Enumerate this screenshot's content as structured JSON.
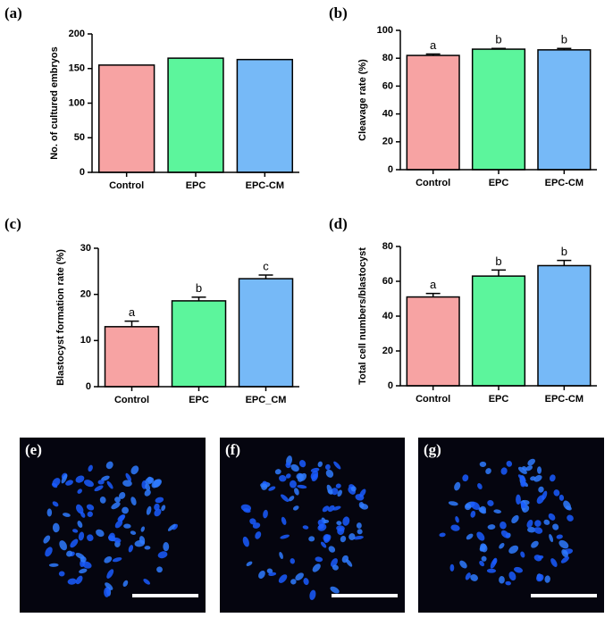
{
  "chart_data": [
    {
      "type": "bar",
      "panel_label": "(a)",
      "ylabel": "No. of cultured embryos",
      "categories": [
        "Control",
        "EPC",
        "EPC-CM"
      ],
      "values": [
        155,
        165,
        163
      ],
      "colors": [
        "#f7a3a3",
        "#5cf59c",
        "#76b9f7"
      ],
      "ylim": [
        0,
        200
      ],
      "yticks": [
        0,
        50,
        100,
        150,
        200
      ]
    },
    {
      "type": "bar",
      "panel_label": "(b)",
      "ylabel": "Cleavage rate (%)",
      "categories": [
        "Control",
        "EPC",
        "EPC-CM"
      ],
      "values": [
        82,
        86.5,
        86
      ],
      "errors": [
        1,
        0.5,
        1
      ],
      "annotations": [
        "a",
        "b",
        "b"
      ],
      "colors": [
        "#f7a3a3",
        "#5cf59c",
        "#76b9f7"
      ],
      "ylim": [
        0,
        100
      ],
      "yticks": [
        0,
        20,
        40,
        60,
        80,
        100
      ]
    },
    {
      "type": "bar",
      "panel_label": "(c)",
      "ylabel": "Blastocyst formation rate (%)",
      "categories": [
        "Control",
        "EPC",
        "EPC_CM"
      ],
      "values": [
        13,
        18.6,
        23.4
      ],
      "errors": [
        1.2,
        0.8,
        0.8
      ],
      "annotations": [
        "a",
        "b",
        "c"
      ],
      "colors": [
        "#f7a3a3",
        "#5cf59c",
        "#76b9f7"
      ],
      "ylim": [
        0,
        30
      ],
      "yticks": [
        0,
        10,
        20,
        30
      ]
    },
    {
      "type": "bar",
      "panel_label": "(d)",
      "ylabel": "Total cell numbers/blastocyst",
      "categories": [
        "Control",
        "EPC",
        "EPC-CM"
      ],
      "values": [
        51,
        63,
        69
      ],
      "errors": [
        2,
        3.5,
        3
      ],
      "annotations": [
        "a",
        "b",
        "b"
      ],
      "colors": [
        "#f7a3a3",
        "#5cf59c",
        "#76b9f7"
      ],
      "ylim": [
        0,
        80
      ],
      "yticks": [
        0,
        20,
        40,
        60,
        80
      ]
    }
  ],
  "images": [
    {
      "label": "(e)"
    },
    {
      "label": "(f)"
    },
    {
      "label": "(g)"
    }
  ]
}
